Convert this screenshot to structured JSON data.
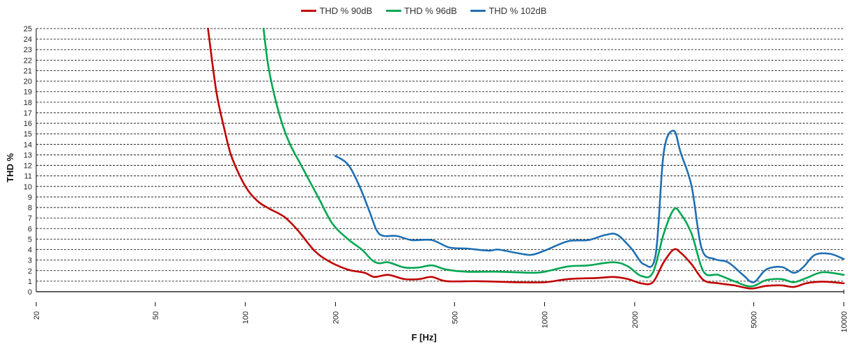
{
  "chart_data": {
    "type": "line",
    "title": "",
    "xlabel": "F [Hz]",
    "ylabel": "THD %",
    "xscale": "log",
    "xlim": [
      20,
      10000
    ],
    "ylim": [
      0,
      25
    ],
    "xticks": [
      20,
      50,
      100,
      200,
      500,
      1000,
      2000,
      5000,
      10000
    ],
    "xtick_labels": [
      "20",
      "50",
      "100",
      "200",
      "500",
      "1000",
      "2000",
      "5000",
      "10000"
    ],
    "yticks": [
      0,
      1,
      2,
      3,
      4,
      5,
      6,
      7,
      8,
      9,
      10,
      11,
      12,
      13,
      14,
      15,
      16,
      17,
      18,
      19,
      20,
      21,
      22,
      23,
      24,
      25
    ],
    "ytick_labels": [
      "0",
      "1",
      "2",
      "3",
      "4",
      "5",
      "6",
      "7",
      "8",
      "9",
      "10",
      "11",
      "12",
      "13",
      "14",
      "15",
      "16",
      "17",
      "18",
      "19",
      "20",
      "21",
      "22",
      "23",
      "24",
      "25"
    ],
    "grid": "horizontal dashed",
    "legend_position": "top",
    "series": [
      {
        "name": "THD % 90dB",
        "color": "#c00000",
        "points": [
          [
            75,
            25
          ],
          [
            80,
            19
          ],
          [
            85,
            15.5
          ],
          [
            90,
            12.8
          ],
          [
            100,
            10
          ],
          [
            110,
            8.6
          ],
          [
            120,
            7.9
          ],
          [
            135,
            7.1
          ],
          [
            150,
            5.8
          ],
          [
            170,
            3.9
          ],
          [
            190,
            2.9
          ],
          [
            220,
            2.1
          ],
          [
            250,
            1.8
          ],
          [
            270,
            1.4
          ],
          [
            300,
            1.6
          ],
          [
            340,
            1.2
          ],
          [
            380,
            1.2
          ],
          [
            420,
            1.4
          ],
          [
            470,
            1.0
          ],
          [
            600,
            1.0
          ],
          [
            800,
            0.9
          ],
          [
            1000,
            0.9
          ],
          [
            1200,
            1.2
          ],
          [
            1500,
            1.3
          ],
          [
            1700,
            1.4
          ],
          [
            1900,
            1.2
          ],
          [
            2100,
            0.8
          ],
          [
            2300,
            0.9
          ],
          [
            2500,
            2.8
          ],
          [
            2700,
            4.0
          ],
          [
            2850,
            3.7
          ],
          [
            3100,
            2.6
          ],
          [
            3400,
            1.1
          ],
          [
            3800,
            0.8
          ],
          [
            4300,
            0.6
          ],
          [
            4900,
            0.3
          ],
          [
            5500,
            0.55
          ],
          [
            6200,
            0.6
          ],
          [
            6800,
            0.45
          ],
          [
            7500,
            0.8
          ],
          [
            8500,
            0.95
          ],
          [
            10000,
            0.8
          ]
        ]
      },
      {
        "name": "THD % 96dB",
        "color": "#00a651",
        "points": [
          [
            115,
            25
          ],
          [
            120,
            21
          ],
          [
            130,
            16.8
          ],
          [
            140,
            14.2
          ],
          [
            155,
            11.8
          ],
          [
            175,
            9.0
          ],
          [
            195,
            6.5
          ],
          [
            220,
            5.0
          ],
          [
            245,
            4.0
          ],
          [
            265,
            3.0
          ],
          [
            280,
            2.7
          ],
          [
            300,
            2.8
          ],
          [
            340,
            2.3
          ],
          [
            380,
            2.3
          ],
          [
            420,
            2.5
          ],
          [
            470,
            2.1
          ],
          [
            550,
            1.9
          ],
          [
            700,
            1.9
          ],
          [
            900,
            1.8
          ],
          [
            1000,
            1.9
          ],
          [
            1200,
            2.4
          ],
          [
            1400,
            2.5
          ],
          [
            1700,
            2.8
          ],
          [
            1900,
            2.4
          ],
          [
            2100,
            1.5
          ],
          [
            2300,
            1.8
          ],
          [
            2500,
            5.5
          ],
          [
            2700,
            7.8
          ],
          [
            2850,
            7.4
          ],
          [
            3100,
            5.5
          ],
          [
            3400,
            1.9
          ],
          [
            3800,
            1.6
          ],
          [
            4300,
            1.0
          ],
          [
            4900,
            0.5
          ],
          [
            5500,
            1.1
          ],
          [
            6200,
            1.2
          ],
          [
            6800,
            0.9
          ],
          [
            7500,
            1.3
          ],
          [
            8500,
            1.85
          ],
          [
            10000,
            1.6
          ]
        ]
      },
      {
        "name": "THD % 102dB",
        "color": "#1f6fb2",
        "points": [
          [
            200,
            12.9
          ],
          [
            220,
            12.1
          ],
          [
            240,
            10.1
          ],
          [
            260,
            7.6
          ],
          [
            275,
            5.8
          ],
          [
            290,
            5.3
          ],
          [
            320,
            5.3
          ],
          [
            360,
            4.9
          ],
          [
            420,
            4.9
          ],
          [
            480,
            4.2
          ],
          [
            550,
            4.1
          ],
          [
            650,
            3.9
          ],
          [
            700,
            4.0
          ],
          [
            800,
            3.7
          ],
          [
            900,
            3.5
          ],
          [
            1000,
            3.9
          ],
          [
            1200,
            4.8
          ],
          [
            1400,
            4.9
          ],
          [
            1600,
            5.4
          ],
          [
            1750,
            5.4
          ],
          [
            1950,
            4.1
          ],
          [
            2150,
            2.6
          ],
          [
            2350,
            3.5
          ],
          [
            2500,
            13.2
          ],
          [
            2700,
            15.3
          ],
          [
            2850,
            13.2
          ],
          [
            3100,
            10.0
          ],
          [
            3350,
            4.1
          ],
          [
            3700,
            3.1
          ],
          [
            4100,
            2.8
          ],
          [
            4600,
            1.6
          ],
          [
            5000,
            0.9
          ],
          [
            5500,
            2.1
          ],
          [
            6200,
            2.35
          ],
          [
            6800,
            1.8
          ],
          [
            7300,
            2.3
          ],
          [
            8000,
            3.5
          ],
          [
            9000,
            3.6
          ],
          [
            10000,
            3.1
          ]
        ]
      }
    ]
  }
}
